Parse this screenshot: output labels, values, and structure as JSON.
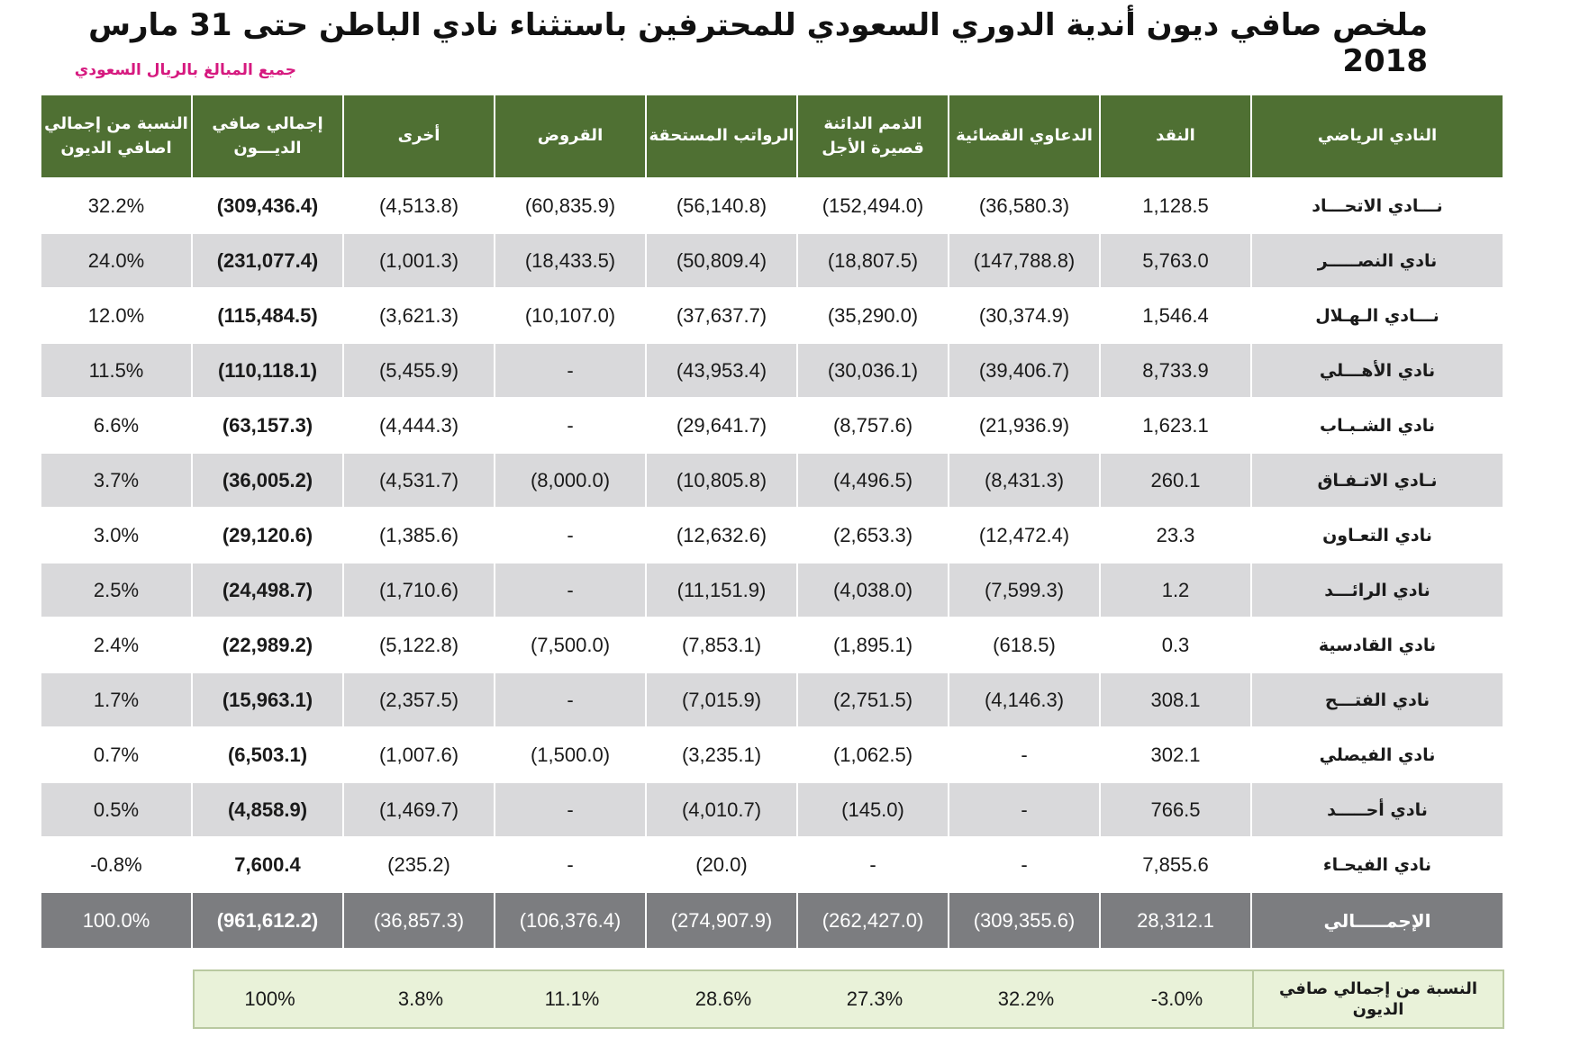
{
  "title": "ملخص صافي ديون أندية الدوري السعودي للمحترفين باستثناء نادي الباطن حتى 31 مارس 2018",
  "subtitle": "جميع المبالغ بالريال السعودي",
  "headers": {
    "share": "النسبة من إجمالي اصافي الديون",
    "total": "إجمالي صافي الديـــون",
    "other": "أخرى",
    "loans": "القروض",
    "salaries": "الرواتب المستحقة",
    "payables": "الذمم الدائنة قصيرة الأجل",
    "lawsuits": "الدعاوي القضائية",
    "cash": "النقد",
    "club": "النادي الرياضي"
  },
  "rows": [
    {
      "club": "نـــادي الاتحـــاد",
      "cash": "1,128.5",
      "lawsuits": "(36,580.3)",
      "payables": "(152,494.0)",
      "salaries": "(56,140.8)",
      "loans": "(60,835.9)",
      "other": "(4,513.8)",
      "total": "(309,436.4)",
      "share": "32.2%"
    },
    {
      "club": "نادي النصـــــر",
      "cash": "5,763.0",
      "lawsuits": "(147,788.8)",
      "payables": "(18,807.5)",
      "salaries": "(50,809.4)",
      "loans": "(18,433.5)",
      "other": "(1,001.3)",
      "total": "(231,077.4)",
      "share": "24.0%"
    },
    {
      "club": "نـــادي الـهـلال",
      "cash": "1,546.4",
      "lawsuits": "(30,374.9)",
      "payables": "(35,290.0)",
      "salaries": "(37,637.7)",
      "loans": "(10,107.0)",
      "other": "(3,621.3)",
      "total": "(115,484.5)",
      "share": "12.0%"
    },
    {
      "club": "نادي الأهـــلي",
      "cash": "8,733.9",
      "lawsuits": "(39,406.7)",
      "payables": "(30,036.1)",
      "salaries": "(43,953.4)",
      "loans": "-",
      "other": "(5,455.9)",
      "total": "(110,118.1)",
      "share": "11.5%"
    },
    {
      "club": "نادي الشـبـاب",
      "cash": "1,623.1",
      "lawsuits": "(21,936.9)",
      "payables": "(8,757.6)",
      "salaries": "(29,641.7)",
      "loans": "-",
      "other": "(4,444.3)",
      "total": "(63,157.3)",
      "share": "6.6%"
    },
    {
      "club": "نـادي الاتـفـاق",
      "cash": "260.1",
      "lawsuits": "(8,431.3)",
      "payables": "(4,496.5)",
      "salaries": "(10,805.8)",
      "loans": "(8,000.0)",
      "other": "(4,531.7)",
      "total": "(36,005.2)",
      "share": "3.7%"
    },
    {
      "club": "نادي التعـاون",
      "cash": "23.3",
      "lawsuits": "(12,472.4)",
      "payables": "(2,653.3)",
      "salaries": "(12,632.6)",
      "loans": "-",
      "other": "(1,385.6)",
      "total": "(29,120.6)",
      "share": "3.0%"
    },
    {
      "club": "نادي الرائـــد",
      "cash": "1.2",
      "lawsuits": "(7,599.3)",
      "payables": "(4,038.0)",
      "salaries": "(11,151.9)",
      "loans": "-",
      "other": "(1,710.6)",
      "total": "(24,498.7)",
      "share": "2.5%"
    },
    {
      "club": "نادي القادسية",
      "cash": "0.3",
      "lawsuits": "(618.5)",
      "payables": "(1,895.1)",
      "salaries": "(7,853.1)",
      "loans": "(7,500.0)",
      "other": "(5,122.8)",
      "total": "(22,989.2)",
      "share": "2.4%"
    },
    {
      "club": "نادي الفتـــح",
      "cash": "308.1",
      "lawsuits": "(4,146.3)",
      "payables": "(2,751.5)",
      "salaries": "(7,015.9)",
      "loans": "-",
      "other": "(2,357.5)",
      "total": "(15,963.1)",
      "share": "1.7%"
    },
    {
      "club": "نادي الفيصلي",
      "cash": "302.1",
      "lawsuits": "-",
      "payables": "(1,062.5)",
      "salaries": "(3,235.1)",
      "loans": "(1,500.0)",
      "other": "(1,007.6)",
      "total": "(6,503.1)",
      "share": "0.7%"
    },
    {
      "club": "نادي أحـــــد",
      "cash": "766.5",
      "lawsuits": "-",
      "payables": "(145.0)",
      "salaries": "(4,010.7)",
      "loans": "-",
      "other": "(1,469.7)",
      "total": "(4,858.9)",
      "share": "0.5%"
    },
    {
      "club": "نادي الفيحـاء",
      "cash": "7,855.6",
      "lawsuits": "-",
      "payables": "-",
      "salaries": "(20.0)",
      "loans": "-",
      "other": "(235.2)",
      "total": "7,600.4",
      "share": "-0.8%"
    }
  ],
  "total_row": {
    "club": "الإجمـــــالي",
    "cash": "28,312.1",
    "lawsuits": "(309,355.6)",
    "payables": "(262,427.0)",
    "salaries": "(274,907.9)",
    "loans": "(106,376.4)",
    "other": "(36,857.3)",
    "total": "(961,612.2)",
    "share": "100.0%"
  },
  "pct_row": {
    "label": "النسبة من إجمالي صافي الديون",
    "cash": "-3.0%",
    "lawsuits": "32.2%",
    "payables": "27.3%",
    "salaries": "28.6%",
    "loans": "11.1%",
    "other": "3.8%",
    "total": "100%"
  },
  "colors": {
    "header_green": "#4f7033",
    "stripe_gray": "#d9d9db",
    "total_gray": "#7c7d80",
    "pct_bg": "#e9f2d9",
    "subtitle_pink": "#d6197f"
  }
}
